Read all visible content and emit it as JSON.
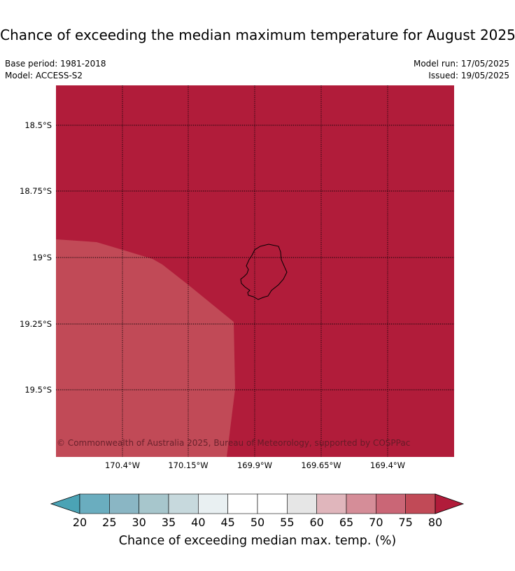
{
  "header": {
    "title": "Chance of exceeding the median maximum temperature for August 2025",
    "base_period": "Base period: 1981-2018",
    "model": "Model: ACCESS-S2",
    "model_run": "Model run: 17/05/2025",
    "issued": "Issued: 19/05/2025"
  },
  "map": {
    "latitude_labels": [
      "18.5°S",
      "18.75°S",
      "19°S",
      "19.25°S",
      "19.5°S"
    ],
    "longitude_labels": [
      "170.4°W",
      "170.15°W",
      "169.9°W",
      "169.65°W",
      "169.4°W"
    ],
    "copyright": "© Commonwealth of Australia 2025, Bureau of Meteorology, supported by COSPPac",
    "region_colors": {
      "main": "#b11c3a",
      "lower": "#c14a57"
    }
  },
  "legend": {
    "title": "Chance of exceeding median max. temp. (%)",
    "tick_labels": [
      "20",
      "25",
      "30",
      "35",
      "40",
      "45",
      "50",
      "55",
      "60",
      "65",
      "70",
      "75",
      "80"
    ],
    "below_color": "#4ba3b5",
    "above_color": "#b11c3a",
    "bin_colors": [
      "#6aadbf",
      "#8ab6c4",
      "#a7c6cc",
      "#c7d9dd",
      "#e9f0f2",
      "#ffffff",
      "#ffffff",
      "#e6e6e6",
      "#e0b6bc",
      "#d58d98",
      "#ca6676",
      "#c14a57"
    ]
  }
}
